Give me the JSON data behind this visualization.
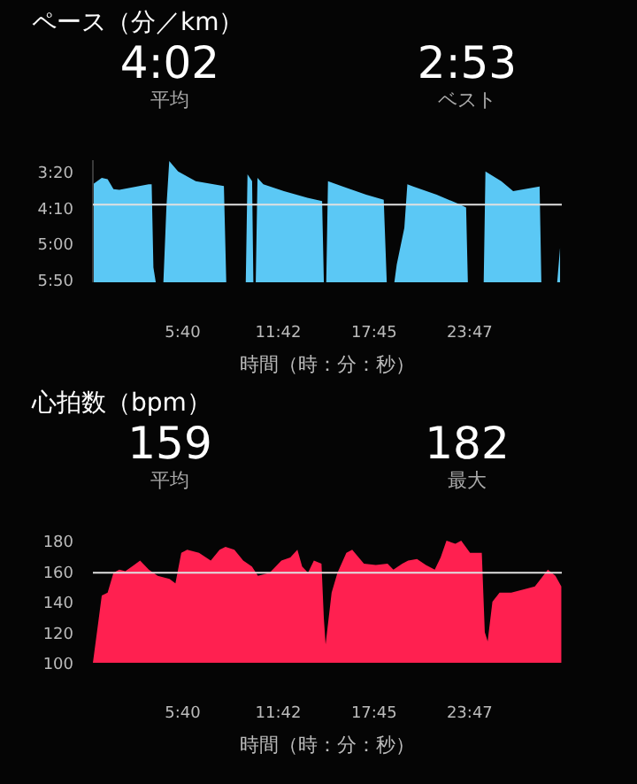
{
  "chart_data": [
    {
      "type": "area",
      "title": "ペース（分／km）",
      "xlabel": "時間（時：分：秒）",
      "annotations": [
        "4:02",
        "平均",
        "2:53",
        "ベスト"
      ],
      "x": [
        0,
        0,
        0.56,
        0.93,
        1.3,
        1.67,
        3.52,
        3.71,
        3.82,
        3.97,
        4.45,
        4.64,
        4.82,
        5.38,
        6.49,
        8.27,
        8.42,
        9.65,
        9.76,
        10.05,
        10.13,
        10.28,
        10.39,
        10.76,
        12.06,
        13.54,
        14.47,
        14.58,
        14.73,
        14.84,
        15.77,
        17.25,
        18.36,
        18.55,
        19.03,
        19.18,
        19.66,
        19.85,
        20.22,
        21.7,
        23.19,
        23.56,
        23.67,
        24.67,
        24.78,
        25.78,
        26.53,
        28.2,
        28.31,
        29.31,
        29.49,
        29.49
      ],
      "series": [
        {
          "color": "#5bc8f5",
          "values": [
            5.833,
            3.56,
            3.41,
            3.44,
            3.67,
            3.69,
            3.56,
            3.56,
            5.49,
            5.833,
            5.833,
            4.1,
            3.02,
            3.26,
            3.49,
            3.6,
            5.833,
            5.833,
            3.33,
            3.49,
            5.833,
            5.833,
            3.41,
            3.56,
            3.72,
            3.87,
            3.95,
            5.833,
            5.833,
            3.49,
            3.61,
            3.8,
            3.92,
            5.833,
            5.833,
            5.42,
            4.57,
            3.56,
            3.61,
            3.8,
            4.03,
            4.1,
            5.833,
            5.833,
            3.26,
            3.49,
            3.72,
            3.61,
            5.833,
            5.833,
            5.03,
            5.833
          ]
        }
      ],
      "xlim": [
        0,
        29.6
      ],
      "ylim": [
        5.833,
        3.0
      ],
      "xticks": [
        {
          "value": 5.667,
          "label": "5:40"
        },
        {
          "value": 11.7,
          "label": "11:42"
        },
        {
          "value": 17.75,
          "label": "17:45"
        },
        {
          "value": 23.783,
          "label": "23:47"
        }
      ],
      "yticks": [
        {
          "value": 3.333,
          "label": "3:20"
        },
        {
          "value": 4.167,
          "label": "4:10"
        },
        {
          "value": 5,
          "label": "5:00"
        },
        {
          "value": 5.833,
          "label": "5:50"
        }
      ],
      "ref_lines": [
        {
          "axis": "y",
          "value": 4.033,
          "color": "#e0e0e0"
        }
      ],
      "grid": false
    },
    {
      "type": "area",
      "title": "心拍数（bpm）",
      "xlabel": "時間（時：分：秒）",
      "annotations": [
        "159",
        "平均",
        "182",
        "最大"
      ],
      "x": [
        0,
        0.37,
        0.56,
        0.93,
        1.3,
        1.67,
        2.05,
        2.6,
        2.98,
        3.53,
        4.09,
        4.84,
        5.21,
        5.58,
        5.95,
        6.7,
        7.44,
        8.0,
        8.37,
        8.93,
        9.49,
        10.04,
        10.42,
        11.16,
        11.9,
        12.46,
        12.91,
        13.21,
        13.58,
        13.95,
        14.43,
        14.58,
        14.69,
        15.07,
        15.44,
        16.0,
        16.37,
        17.11,
        17.86,
        18.6,
        18.97,
        19.53,
        19.9,
        20.46,
        21.02,
        21.58,
        21.95,
        22.32,
        22.88,
        23.25,
        23.81,
        24.18,
        24.55,
        24.74,
        24.92,
        25.22,
        25.67,
        26.41,
        27.16,
        27.9,
        28.27,
        28.72,
        29.2,
        29.57,
        29.57
      ],
      "series": [
        {
          "color": "#ff2050",
          "values": [
            100,
            129,
            144,
            146,
            159,
            161,
            160,
            164,
            167,
            161,
            157,
            155,
            152,
            172,
            174,
            172,
            167,
            174,
            176,
            174,
            167,
            163,
            157,
            159,
            167,
            169,
            174,
            163,
            159,
            167,
            165,
            129,
            112,
            146,
            159,
            172,
            174,
            165,
            164,
            165,
            161,
            165,
            167,
            168,
            164,
            161,
            169,
            180,
            178,
            180,
            172,
            172,
            172,
            120,
            114,
            140,
            146,
            146,
            148,
            150,
            155,
            161,
            157,
            150,
            100
          ]
        }
      ],
      "xlim": [
        0,
        29.6
      ],
      "ylim": [
        100,
        180
      ],
      "xticks": [
        {
          "value": 5.667,
          "label": "5:40"
        },
        {
          "value": 11.7,
          "label": "11:42"
        },
        {
          "value": 17.75,
          "label": "17:45"
        },
        {
          "value": 23.783,
          "label": "23:47"
        }
      ],
      "yticks": [
        100,
        120,
        140,
        160,
        180
      ],
      "ref_lines": [
        {
          "axis": "y",
          "value": 159,
          "color": "#e0e0e0"
        }
      ],
      "grid": false
    }
  ]
}
